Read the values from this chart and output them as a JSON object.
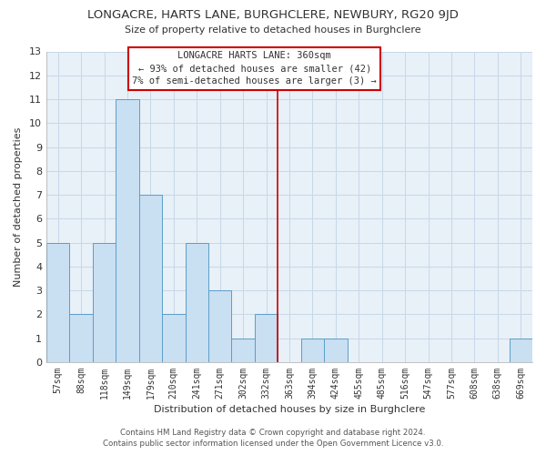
{
  "title": "LONGACRE, HARTS LANE, BURGHCLERE, NEWBURY, RG20 9JD",
  "subtitle": "Size of property relative to detached houses in Burghclere",
  "xlabel": "Distribution of detached houses by size in Burghclere",
  "ylabel": "Number of detached properties",
  "bar_labels": [
    "57sqm",
    "88sqm",
    "118sqm",
    "149sqm",
    "179sqm",
    "210sqm",
    "241sqm",
    "271sqm",
    "302sqm",
    "332sqm",
    "363sqm",
    "394sqm",
    "424sqm",
    "455sqm",
    "485sqm",
    "516sqm",
    "547sqm",
    "577sqm",
    "608sqm",
    "638sqm",
    "669sqm"
  ],
  "bar_values": [
    5,
    2,
    5,
    11,
    7,
    2,
    5,
    3,
    1,
    2,
    0,
    1,
    1,
    0,
    0,
    0,
    0,
    0,
    0,
    0,
    1
  ],
  "bar_color": "#c9dff2",
  "bar_edge_color": "#5b9ec9",
  "reference_line_x": 9.5,
  "reference_line_color": "#cc0000",
  "annotation_title": "LONGACRE HARTS LANE: 360sqm",
  "annotation_line1": "← 93% of detached houses are smaller (42)",
  "annotation_line2": "7% of semi-detached houses are larger (3) →",
  "annotation_box_color": "#ffffff",
  "annotation_box_edge_color": "#cc0000",
  "ylim": [
    0,
    13
  ],
  "yticks": [
    0,
    1,
    2,
    3,
    4,
    5,
    6,
    7,
    8,
    9,
    10,
    11,
    12,
    13
  ],
  "footer_line1": "Contains HM Land Registry data © Crown copyright and database right 2024.",
  "footer_line2": "Contains public sector information licensed under the Open Government Licence v3.0.",
  "bg_color": "#ffffff",
  "plot_bg_color": "#e8f0f8",
  "grid_color": "#c8d8e8"
}
